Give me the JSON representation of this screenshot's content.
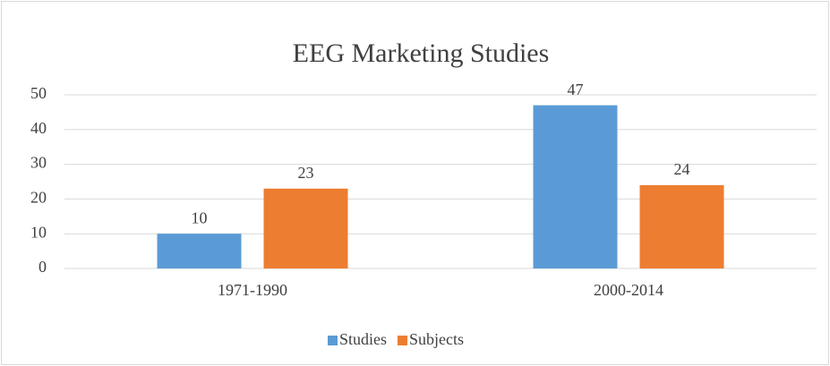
{
  "chart_data": {
    "type": "bar",
    "title": "EEG Marketing Studies",
    "categories": [
      "1971-1990",
      "2000-2014"
    ],
    "series": [
      {
        "name": "Studies",
        "color": "#5b9bd5",
        "values": [
          10,
          47
        ]
      },
      {
        "name": "Subjects",
        "color": "#ed7d31",
        "values": [
          23,
          24
        ]
      }
    ],
    "ylim": [
      0,
      50
    ],
    "yticks": [
      0,
      10,
      20,
      30,
      40,
      50
    ],
    "grid": true,
    "legend": "bottom"
  }
}
